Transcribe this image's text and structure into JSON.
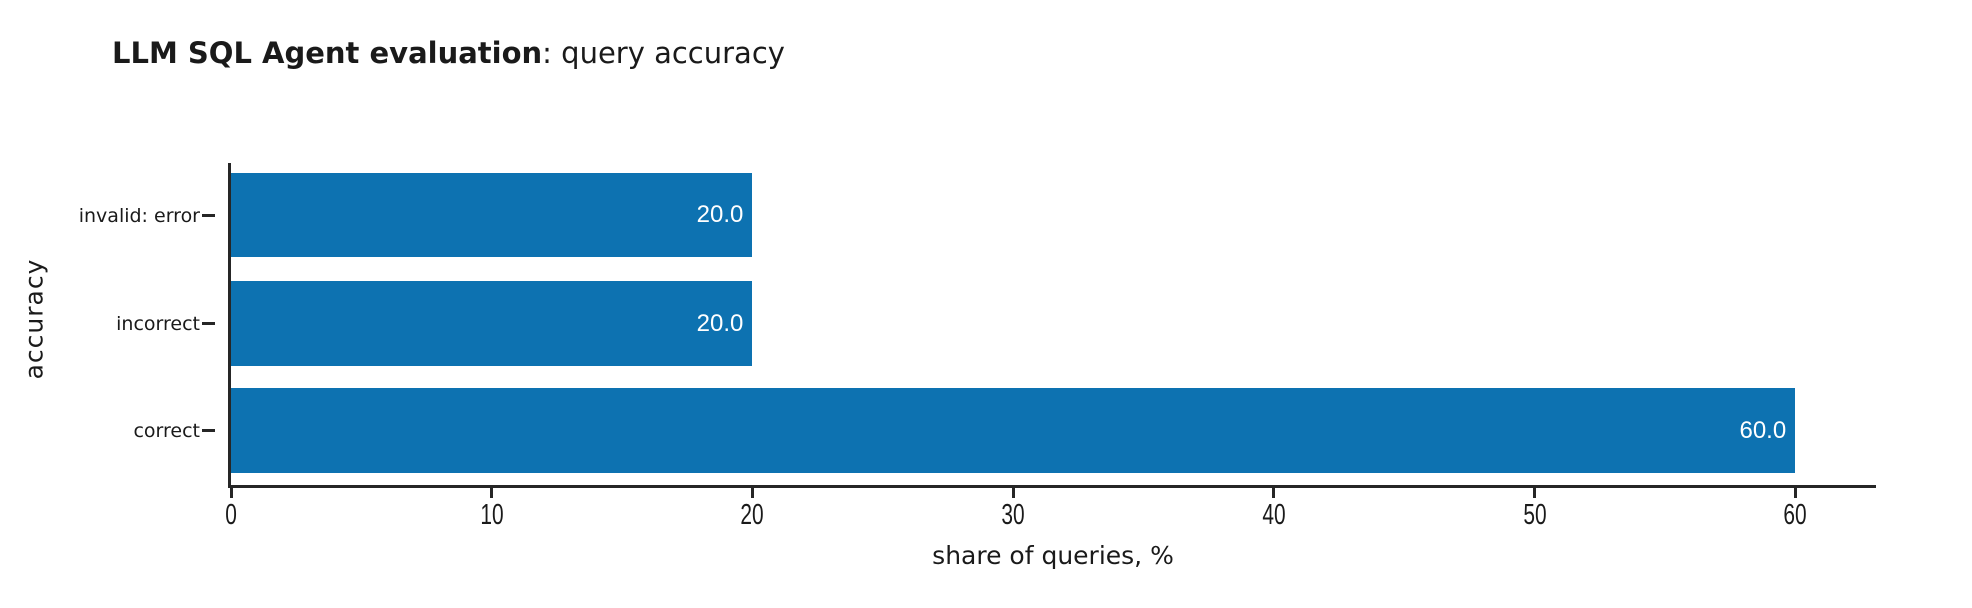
{
  "title": {
    "bold_part": "LLM SQL Agent evaluation",
    "regular_part": ": query accuracy"
  },
  "chart_data": {
    "type": "bar",
    "orientation": "horizontal",
    "title": "LLM SQL Agent evaluation: query accuracy",
    "xlabel": "share of queries, %",
    "ylabel": "accuracy",
    "categories": [
      "invalid: error",
      "incorrect",
      "correct"
    ],
    "values": [
      20.0,
      20.0,
      60.0
    ],
    "bar_labels": [
      "20.0",
      "20.0",
      "60.0"
    ],
    "xticks": [
      "0",
      "10",
      "20",
      "30",
      "40",
      "50",
      "60"
    ],
    "xlim": [
      0,
      63.2
    ],
    "grid": false,
    "legend": false,
    "bar_color": "#0d72b1",
    "bar_label_color": "#ffffff",
    "axis_color": "#262626",
    "text_color": "#1a1a1a",
    "background_color": "#ffffff"
  }
}
